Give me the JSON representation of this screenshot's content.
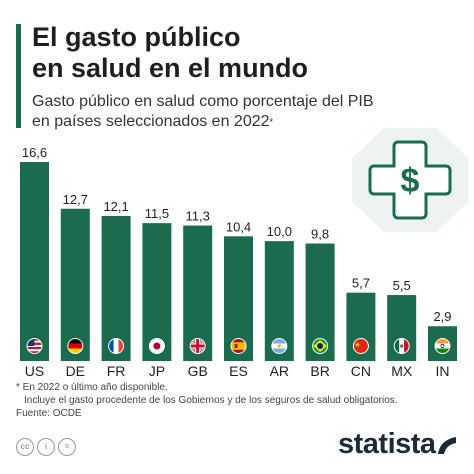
{
  "title_lines": [
    "El gasto público",
    "en salud en el mundo"
  ],
  "subtitle_lines": [
    "Gasto público en salud como porcentaje del PIB",
    "en países seleccionados en 2022"
  ],
  "subtitle_mark": "*",
  "footnotes": [
    "* En 2022 o último año disponible.",
    "Incluye el gasto procedente de los Gobiernos y de los seguros de salud obligatorios.",
    "Fuente: OCDE"
  ],
  "brand": "statista",
  "icon": {
    "name": "medical-cross-dollar-icon",
    "symbol": "$"
  },
  "colors": {
    "bar": "#1b6b4f",
    "accent": "#1b6b4f",
    "text": "#1f1f1f"
  },
  "chart_data": {
    "type": "bar",
    "categories": [
      "US",
      "DE",
      "FR",
      "JP",
      "GB",
      "ES",
      "AR",
      "BR",
      "CN",
      "MX",
      "IN"
    ],
    "values": [
      16.6,
      12.7,
      12.1,
      11.5,
      11.3,
      10.4,
      10.0,
      9.8,
      5.7,
      5.5,
      2.9
    ],
    "value_labels": [
      "16,6",
      "12,7",
      "12,1",
      "11,5",
      "11,3",
      "10,4",
      "10,0",
      "9,8",
      "5,7",
      "5,5",
      "2,9"
    ],
    "flags": [
      "us-flag-icon",
      "de-flag-icon",
      "fr-flag-icon",
      "jp-flag-icon",
      "gb-flag-icon",
      "es-flag-icon",
      "ar-flag-icon",
      "br-flag-icon",
      "cn-flag-icon",
      "mx-flag-icon",
      "in-flag-icon"
    ],
    "ylim": [
      0,
      16.6
    ],
    "grid": false,
    "legend": "none"
  }
}
